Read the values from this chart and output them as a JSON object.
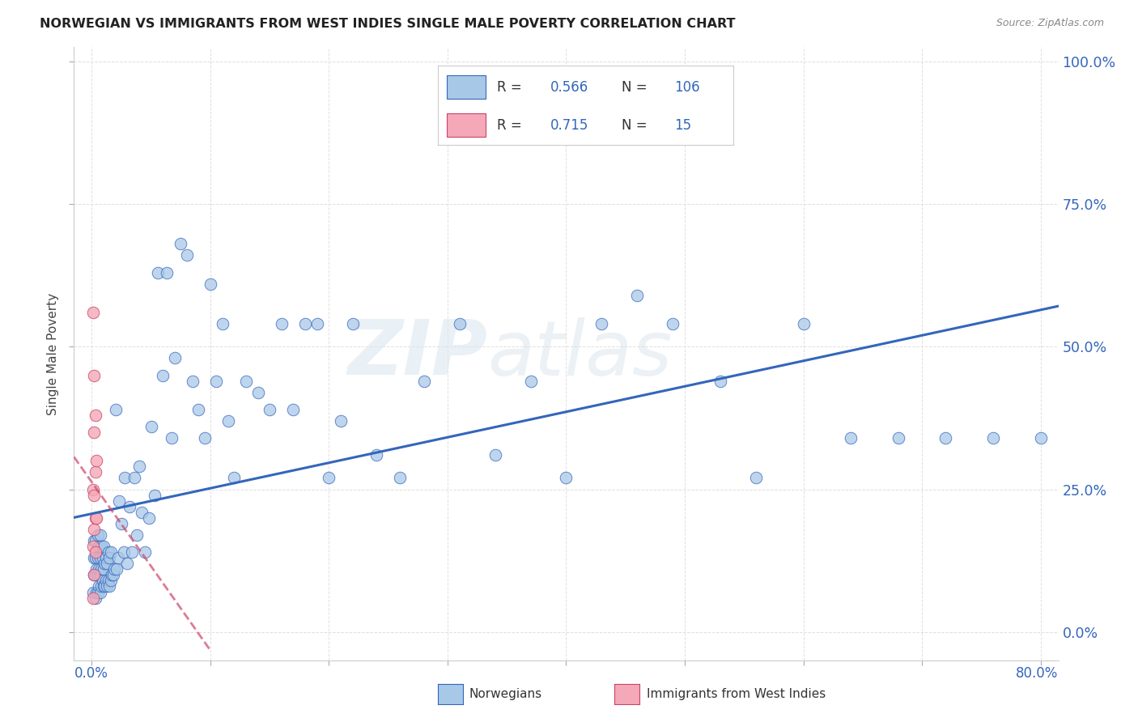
{
  "title": "NORWEGIAN VS IMMIGRANTS FROM WEST INDIES SINGLE MALE POVERTY CORRELATION CHART",
  "source": "Source: ZipAtlas.com",
  "ylabel": "Single Male Poverty",
  "R1": 0.566,
  "N1": 106,
  "R2": 0.715,
  "N2": 15,
  "color_norwegian": "#a8c8e8",
  "color_westindies": "#f4a8b8",
  "color_line_norwegian": "#3366bb",
  "color_line_westindies": "#cc4466",
  "background_color": "#ffffff",
  "grid_color": "#e0e0e0",
  "legend_label1": "Norwegians",
  "legend_label2": "Immigrants from West Indies",
  "xlim": [
    0.0,
    0.8
  ],
  "ylim": [
    0.0,
    1.0
  ],
  "norwegians_x": [
    0.001,
    0.002,
    0.002,
    0.002,
    0.003,
    0.003,
    0.003,
    0.003,
    0.004,
    0.004,
    0.004,
    0.005,
    0.005,
    0.005,
    0.005,
    0.006,
    0.006,
    0.006,
    0.007,
    0.007,
    0.007,
    0.007,
    0.008,
    0.008,
    0.008,
    0.009,
    0.009,
    0.01,
    0.01,
    0.01,
    0.011,
    0.011,
    0.012,
    0.012,
    0.013,
    0.013,
    0.014,
    0.014,
    0.015,
    0.015,
    0.016,
    0.016,
    0.017,
    0.018,
    0.019,
    0.02,
    0.021,
    0.022,
    0.023,
    0.025,
    0.027,
    0.028,
    0.03,
    0.032,
    0.034,
    0.036,
    0.038,
    0.04,
    0.042,
    0.045,
    0.048,
    0.05,
    0.053,
    0.056,
    0.06,
    0.063,
    0.067,
    0.07,
    0.075,
    0.08,
    0.085,
    0.09,
    0.095,
    0.1,
    0.105,
    0.11,
    0.115,
    0.12,
    0.13,
    0.14,
    0.15,
    0.16,
    0.17,
    0.18,
    0.19,
    0.2,
    0.21,
    0.22,
    0.24,
    0.26,
    0.28,
    0.31,
    0.34,
    0.37,
    0.4,
    0.43,
    0.46,
    0.49,
    0.53,
    0.56,
    0.6,
    0.64,
    0.68,
    0.72,
    0.76,
    0.8
  ],
  "norwegians_y": [
    0.07,
    0.1,
    0.13,
    0.16,
    0.06,
    0.1,
    0.13,
    0.16,
    0.07,
    0.11,
    0.14,
    0.07,
    0.1,
    0.13,
    0.17,
    0.08,
    0.11,
    0.15,
    0.07,
    0.1,
    0.13,
    0.17,
    0.08,
    0.11,
    0.15,
    0.09,
    0.13,
    0.08,
    0.11,
    0.15,
    0.08,
    0.12,
    0.09,
    0.13,
    0.08,
    0.12,
    0.09,
    0.14,
    0.08,
    0.13,
    0.09,
    0.14,
    0.1,
    0.1,
    0.11,
    0.39,
    0.11,
    0.13,
    0.23,
    0.19,
    0.14,
    0.27,
    0.12,
    0.22,
    0.14,
    0.27,
    0.17,
    0.29,
    0.21,
    0.14,
    0.2,
    0.36,
    0.24,
    0.63,
    0.45,
    0.63,
    0.34,
    0.48,
    0.68,
    0.66,
    0.44,
    0.39,
    0.34,
    0.61,
    0.44,
    0.54,
    0.37,
    0.27,
    0.44,
    0.42,
    0.39,
    0.54,
    0.39,
    0.54,
    0.54,
    0.27,
    0.37,
    0.54,
    0.31,
    0.27,
    0.44,
    0.54,
    0.31,
    0.44,
    0.27,
    0.54,
    0.59,
    0.54,
    0.44,
    0.27,
    0.54,
    0.34,
    0.34,
    0.34,
    0.34,
    0.34
  ],
  "westindies_x": [
    0.001,
    0.001,
    0.001,
    0.001,
    0.002,
    0.002,
    0.002,
    0.002,
    0.002,
    0.003,
    0.003,
    0.003,
    0.003,
    0.004,
    0.004
  ],
  "westindies_y": [
    0.56,
    0.25,
    0.15,
    0.06,
    0.45,
    0.35,
    0.24,
    0.18,
    0.1,
    0.38,
    0.28,
    0.2,
    0.14,
    0.3,
    0.2
  ]
}
